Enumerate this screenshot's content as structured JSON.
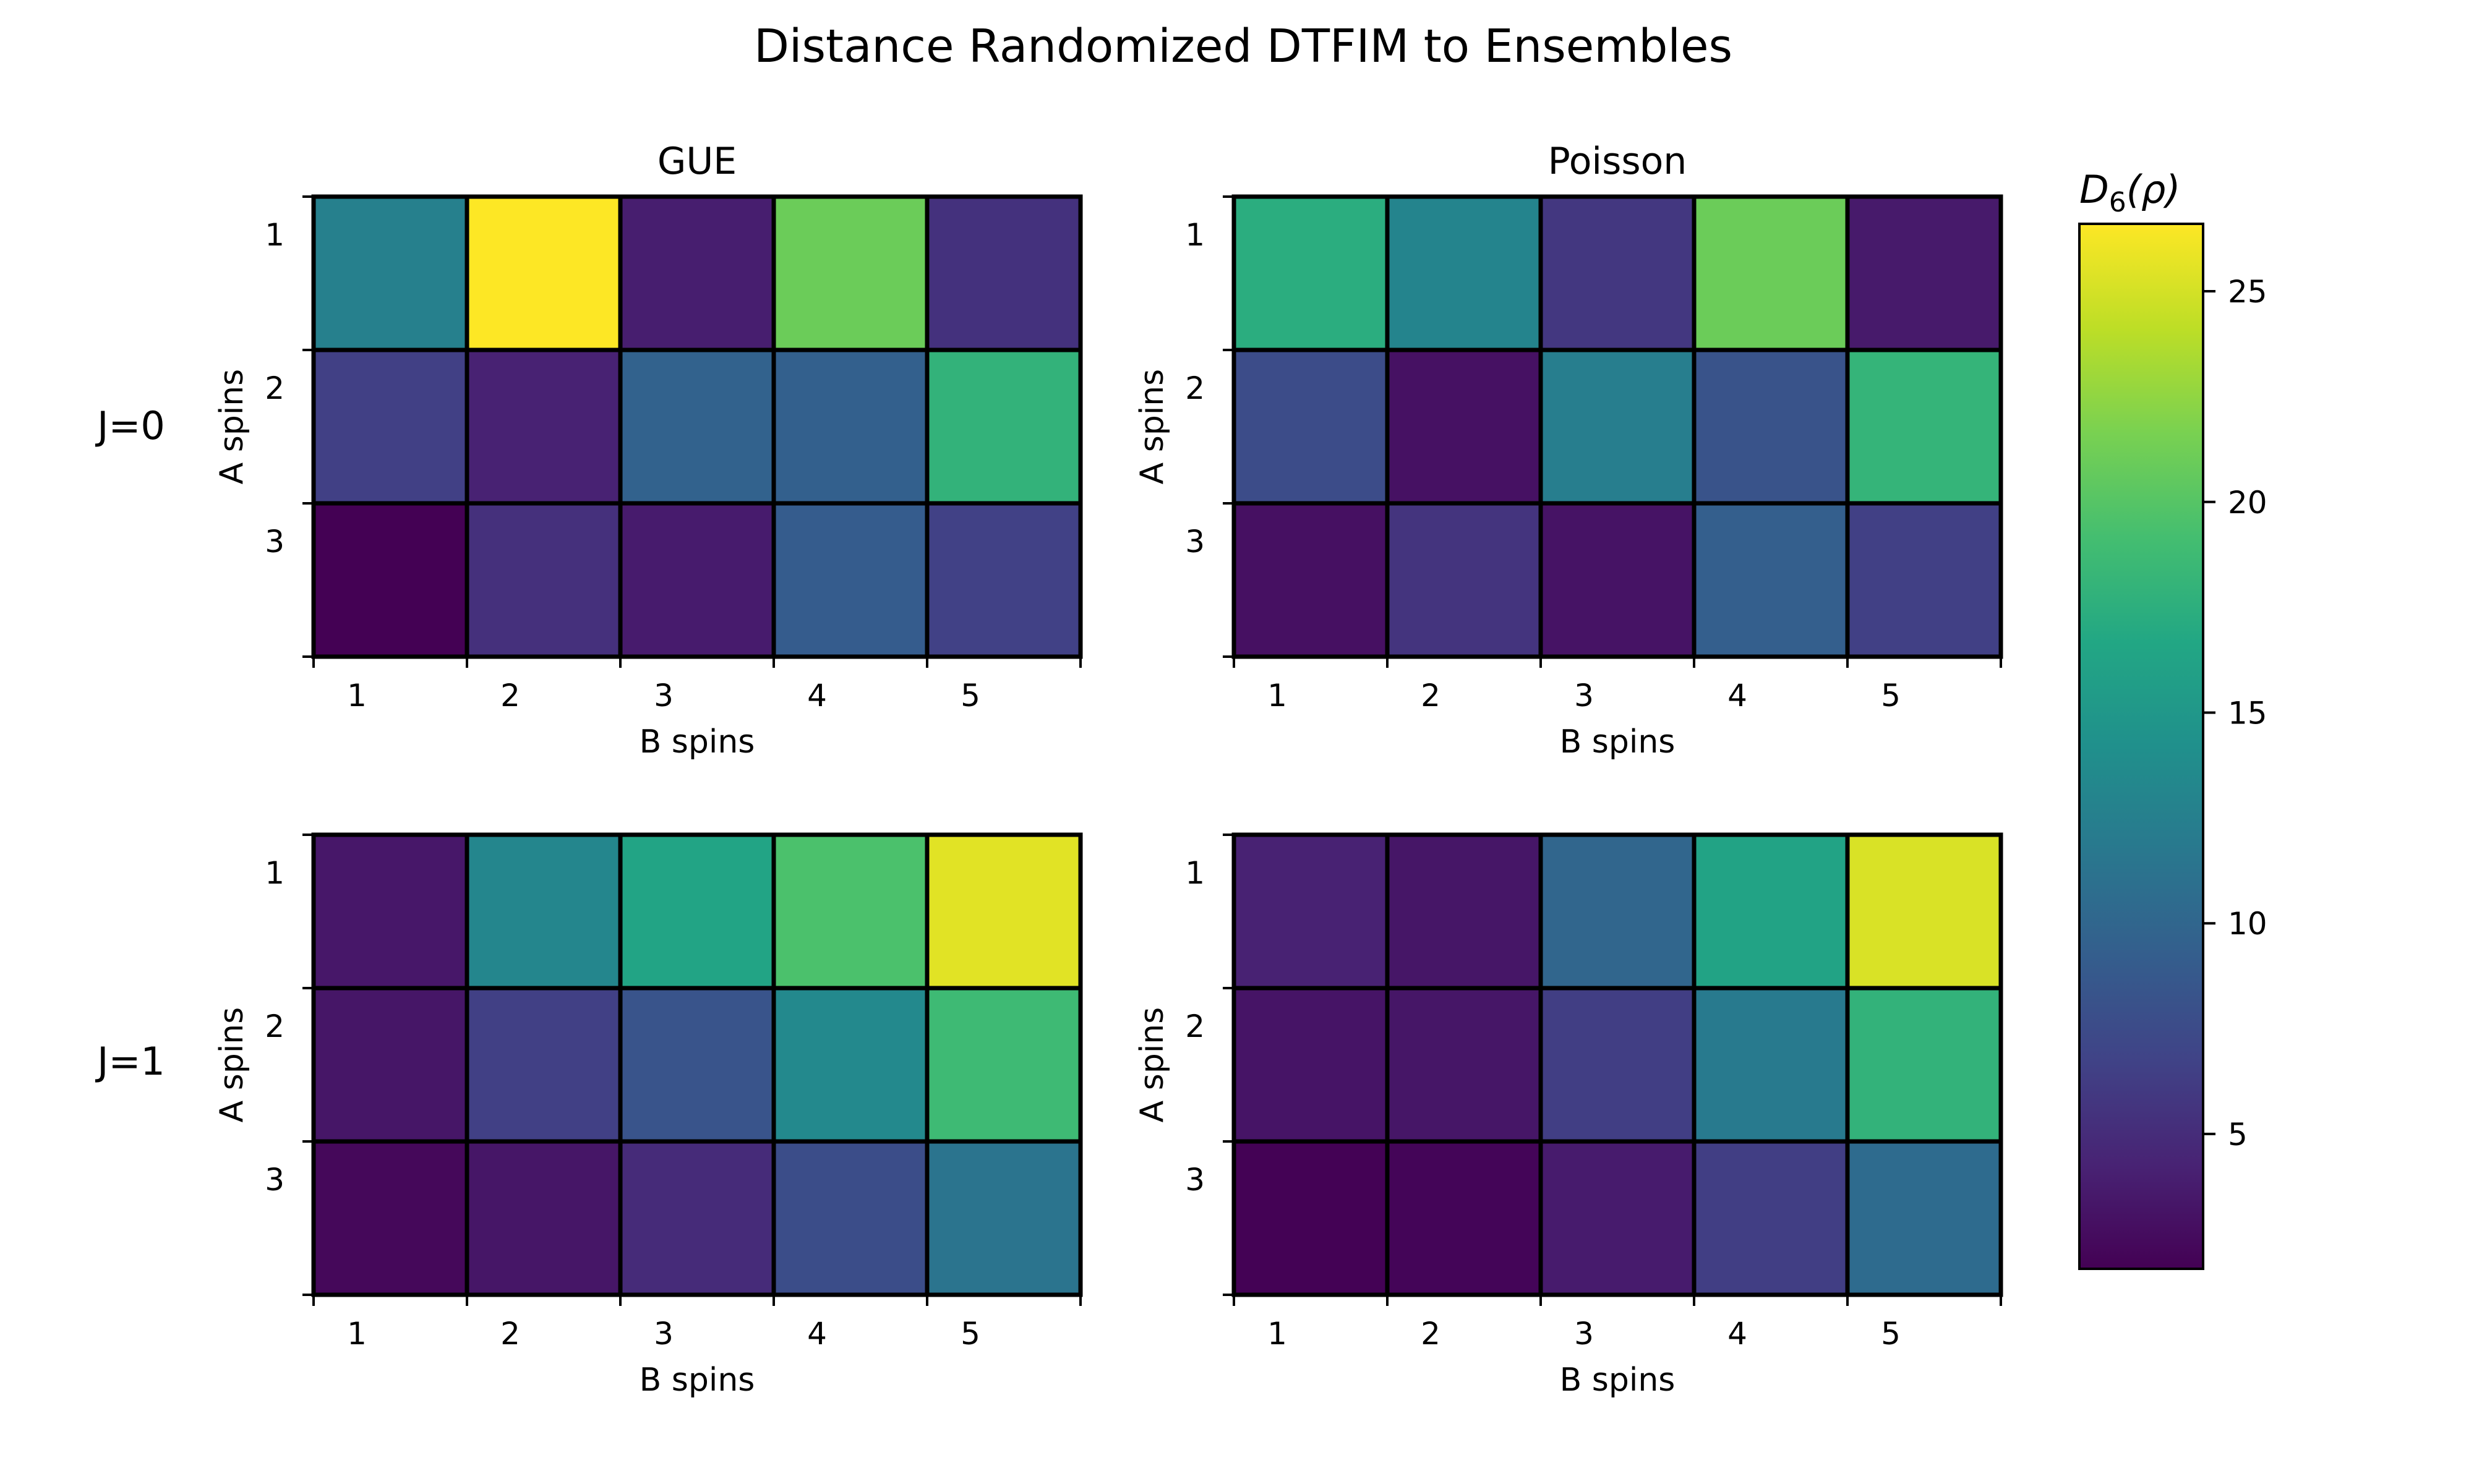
{
  "chart_data": {
    "type": "heatmap",
    "title": "Distance Randomized DTFIM to Ensembles",
    "colorbar": {
      "label": "D6(ρ)",
      "label_main": "D",
      "label_sub": "6",
      "label_rest": "(ρ)",
      "range": [
        1.8,
        26.6
      ],
      "ticks": [
        5,
        10,
        15,
        20,
        25
      ],
      "colormap": "viridis"
    },
    "row_labels": [
      "J=0",
      "J=1"
    ],
    "column_titles": [
      "GUE",
      "Poisson"
    ],
    "xlabel": "B spins",
    "ylabel": "A spins",
    "x_ticks": [
      "1",
      "2",
      "3",
      "4",
      "5"
    ],
    "y_ticks": [
      "1",
      "2",
      "3"
    ],
    "panels": [
      {
        "row": "J=0",
        "ensemble": "GUE",
        "values": [
          [
            12.5,
            26.6,
            3.9,
            21.0,
            5.4
          ],
          [
            6.5,
            4.2,
            9.6,
            9.4,
            17.9
          ],
          [
            1.8,
            5.3,
            3.7,
            9.1,
            6.6
          ]
        ]
      },
      {
        "row": "J=0",
        "ensemble": "Poisson",
        "values": [
          [
            17.3,
            13.0,
            5.8,
            21.0,
            3.6
          ],
          [
            7.6,
            3.0,
            12.3,
            8.2,
            18.1
          ],
          [
            2.9,
            5.6,
            3.1,
            9.3,
            6.5
          ]
        ]
      },
      {
        "row": "J=1",
        "ensemble": "GUE",
        "values": [
          [
            3.4,
            13.2,
            16.4,
            19.5,
            25.5
          ],
          [
            3.3,
            6.5,
            8.3,
            13.5,
            18.7
          ],
          [
            2.3,
            3.3,
            4.9,
            7.7,
            11.3
          ]
        ]
      },
      {
        "row": "J=1",
        "ensemble": "Poisson",
        "values": [
          [
            4.2,
            3.3,
            10.0,
            16.3,
            25.2
          ],
          [
            3.2,
            3.3,
            6.4,
            11.9,
            17.9
          ],
          [
            1.9,
            2.1,
            3.7,
            6.4,
            10.5
          ]
        ]
      }
    ]
  }
}
